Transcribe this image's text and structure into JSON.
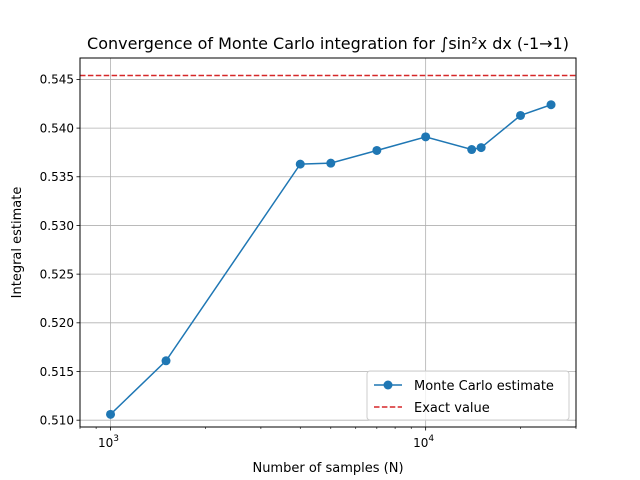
{
  "chart_data": {
    "type": "line",
    "title": "Convergence of Monte Carlo integration for ∫sin²x dx (-1→1)",
    "xlabel": "Number of samples (N)",
    "ylabel": "Integral estimate",
    "xscale": "log",
    "xlim": [
      800,
      30000
    ],
    "ylim": [
      0.5093,
      0.5472
    ],
    "x_ticks": [
      {
        "value": 1000,
        "base": "10",
        "exp": "3"
      },
      {
        "value": 10000,
        "base": "10",
        "exp": "4"
      }
    ],
    "y_ticks": [
      {
        "value": 0.51,
        "label": "0.510"
      },
      {
        "value": 0.515,
        "label": "0.515"
      },
      {
        "value": 0.52,
        "label": "0.520"
      },
      {
        "value": 0.525,
        "label": "0.525"
      },
      {
        "value": 0.53,
        "label": "0.530"
      },
      {
        "value": 0.535,
        "label": "0.535"
      },
      {
        "value": 0.54,
        "label": "0.540"
      },
      {
        "value": 0.545,
        "label": "0.545"
      }
    ],
    "grid": true,
    "legend_position": "bottom-right",
    "series": [
      {
        "name": "Monte Carlo estimate",
        "color": "#1f77b4",
        "style": "line-with-circle-markers",
        "x": [
          1000,
          1500,
          4000,
          5000,
          7000,
          10000,
          14000,
          15000,
          20000,
          25000
        ],
        "y": [
          0.5106,
          0.5161,
          0.5363,
          0.5364,
          0.5377,
          0.5391,
          0.5378,
          0.538,
          0.5413,
          0.5424
        ]
      },
      {
        "name": "Exact value",
        "color": "#d62728",
        "style": "dashed-horizontal",
        "y": 0.5454
      }
    ]
  }
}
